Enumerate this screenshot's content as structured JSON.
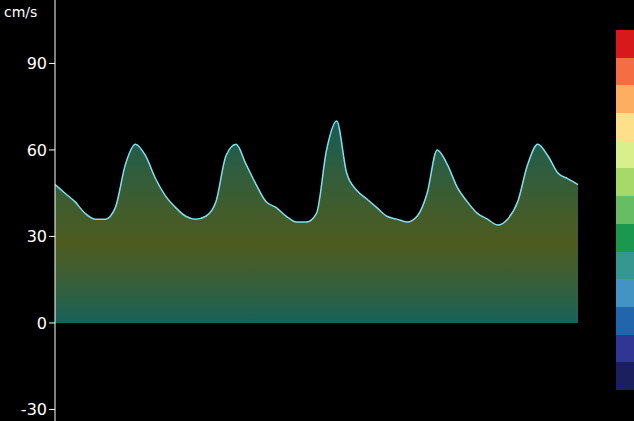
{
  "chart_data": {
    "type": "area",
    "y_label": "cm/s",
    "color": "#2bb5a8",
    "tick_labels": "y",
    "grid": false,
    "xlim": [
      0,
      52
    ],
    "ylim": [
      -34,
      112
    ],
    "yticks": [
      -30,
      0,
      30,
      60,
      90
    ],
    "x": [
      0,
      1,
      2,
      3,
      4,
      5,
      6,
      7,
      8,
      9,
      10,
      11,
      12,
      13,
      14,
      15,
      16,
      17,
      18,
      19,
      20,
      21,
      22,
      23,
      24,
      25,
      26,
      27,
      28,
      29,
      30,
      31,
      32,
      33,
      34,
      35,
      36,
      37,
      38,
      39,
      40,
      41,
      42,
      43,
      44,
      45,
      46,
      47,
      48,
      49,
      50,
      51,
      52
    ],
    "values": [
      48,
      45,
      42,
      38,
      36,
      36,
      40,
      55,
      62,
      58,
      50,
      44,
      40,
      37,
      36,
      37,
      42,
      58,
      62,
      55,
      48,
      42,
      40,
      37,
      35,
      35,
      38,
      60,
      70,
      52,
      46,
      43,
      40,
      37,
      36,
      35,
      37,
      45,
      60,
      55,
      47,
      42,
      38,
      36,
      34,
      36,
      42,
      55,
      62,
      58,
      52,
      50,
      48
    ]
  }
}
